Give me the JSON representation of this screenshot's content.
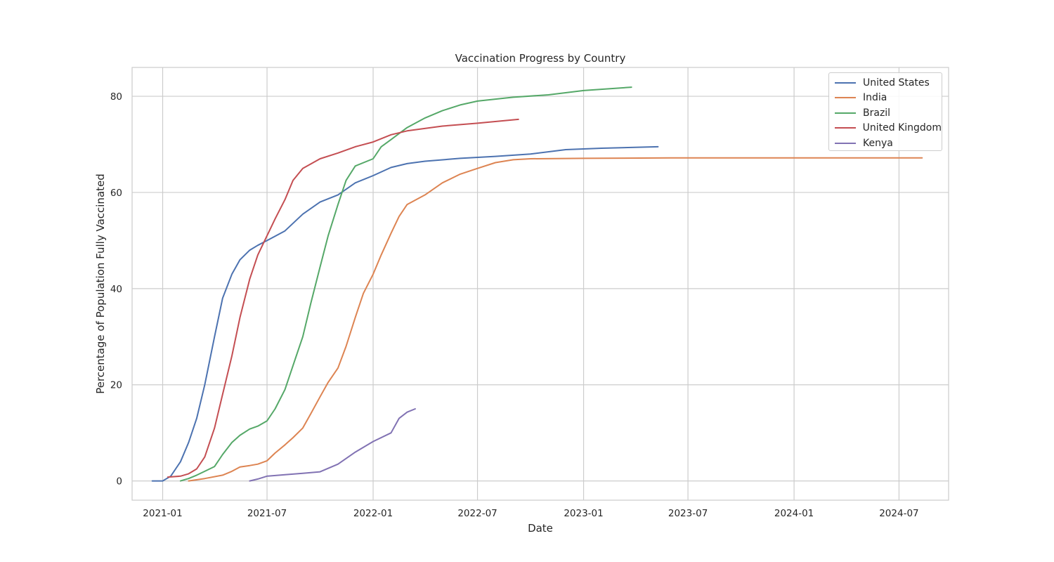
{
  "chart_data": {
    "type": "line",
    "title": "Vaccination Progress by Country",
    "xlabel": "Date",
    "ylabel": "Percentage of Population Fully Vaccinated",
    "xlim": [
      "2020-11-09",
      "2024-09-25"
    ],
    "ylim": [
      -4,
      86
    ],
    "x_ticks": [
      "2021-01",
      "2021-07",
      "2022-01",
      "2022-07",
      "2023-01",
      "2023-07",
      "2024-01",
      "2024-07"
    ],
    "y_ticks": [
      0,
      20,
      40,
      60,
      80
    ],
    "grid": true,
    "legend_position": "upper right",
    "series": [
      {
        "name": "United States",
        "color": "#4c72b0",
        "points": [
          [
            "2020-12-14",
            0
          ],
          [
            "2021-01-01",
            0
          ],
          [
            "2021-01-15",
            1
          ],
          [
            "2021-02-01",
            4
          ],
          [
            "2021-02-15",
            8
          ],
          [
            "2021-03-01",
            13
          ],
          [
            "2021-03-15",
            20
          ],
          [
            "2021-04-01",
            30
          ],
          [
            "2021-04-15",
            38
          ],
          [
            "2021-05-01",
            43
          ],
          [
            "2021-05-15",
            46
          ],
          [
            "2021-06-01",
            48
          ],
          [
            "2021-06-15",
            49
          ],
          [
            "2021-07-01",
            50
          ],
          [
            "2021-08-01",
            52
          ],
          [
            "2021-09-01",
            55.5
          ],
          [
            "2021-10-01",
            58
          ],
          [
            "2021-11-01",
            59.5
          ],
          [
            "2021-12-01",
            62
          ],
          [
            "2022-01-01",
            63.5
          ],
          [
            "2022-02-01",
            65.2
          ],
          [
            "2022-03-01",
            66
          ],
          [
            "2022-04-01",
            66.5
          ],
          [
            "2022-06-01",
            67.1
          ],
          [
            "2022-08-01",
            67.5
          ],
          [
            "2022-10-01",
            68
          ],
          [
            "2022-12-01",
            68.9
          ],
          [
            "2023-02-01",
            69.2
          ],
          [
            "2023-05-10",
            69.5
          ]
        ]
      },
      {
        "name": "India",
        "color": "#dd8452",
        "points": [
          [
            "2021-02-15",
            0
          ],
          [
            "2021-03-15",
            0.5
          ],
          [
            "2021-04-15",
            1.2
          ],
          [
            "2021-05-01",
            2
          ],
          [
            "2021-05-15",
            2.9
          ],
          [
            "2021-06-01",
            3.2
          ],
          [
            "2021-06-15",
            3.5
          ],
          [
            "2021-07-01",
            4.2
          ],
          [
            "2021-07-15",
            5.8
          ],
          [
            "2021-08-01",
            7.5
          ],
          [
            "2021-08-15",
            9
          ],
          [
            "2021-09-01",
            11
          ],
          [
            "2021-09-15",
            14
          ],
          [
            "2021-10-01",
            17.5
          ],
          [
            "2021-10-15",
            20.5
          ],
          [
            "2021-11-01",
            23.5
          ],
          [
            "2021-11-15",
            28
          ],
          [
            "2021-12-01",
            34
          ],
          [
            "2021-12-15",
            39
          ],
          [
            "2022-01-01",
            43
          ],
          [
            "2022-01-15",
            47
          ],
          [
            "2022-02-01",
            51.5
          ],
          [
            "2022-02-15",
            55
          ],
          [
            "2022-03-01",
            57.5
          ],
          [
            "2022-04-01",
            59.5
          ],
          [
            "2022-05-01",
            62
          ],
          [
            "2022-06-01",
            63.8
          ],
          [
            "2022-07-01",
            65
          ],
          [
            "2022-08-01",
            66.2
          ],
          [
            "2022-09-01",
            66.8
          ],
          [
            "2022-10-01",
            67
          ],
          [
            "2023-01-01",
            67.1
          ],
          [
            "2023-06-01",
            67.2
          ],
          [
            "2023-12-01",
            67.2
          ],
          [
            "2024-08-10",
            67.2
          ]
        ]
      },
      {
        "name": "Brazil",
        "color": "#55a868",
        "points": [
          [
            "2021-02-01",
            0
          ],
          [
            "2021-02-15",
            0.5
          ],
          [
            "2021-03-01",
            1.2
          ],
          [
            "2021-03-15",
            2
          ],
          [
            "2021-04-01",
            3
          ],
          [
            "2021-04-15",
            5.5
          ],
          [
            "2021-05-01",
            8
          ],
          [
            "2021-05-15",
            9.5
          ],
          [
            "2021-06-01",
            10.8
          ],
          [
            "2021-06-15",
            11.4
          ],
          [
            "2021-07-01",
            12.5
          ],
          [
            "2021-07-15",
            15
          ],
          [
            "2021-08-01",
            19
          ],
          [
            "2021-08-15",
            24
          ],
          [
            "2021-09-01",
            30
          ],
          [
            "2021-09-15",
            37
          ],
          [
            "2021-10-01",
            44.5
          ],
          [
            "2021-10-15",
            51
          ],
          [
            "2021-11-01",
            57.5
          ],
          [
            "2021-11-15",
            62.5
          ],
          [
            "2021-12-01",
            65.5
          ],
          [
            "2022-01-01",
            67
          ],
          [
            "2022-01-15",
            69.5
          ],
          [
            "2022-02-01",
            71
          ],
          [
            "2022-03-01",
            73.5
          ],
          [
            "2022-04-01",
            75.5
          ],
          [
            "2022-05-01",
            77
          ],
          [
            "2022-06-01",
            78.2
          ],
          [
            "2022-07-01",
            79
          ],
          [
            "2022-09-01",
            79.8
          ],
          [
            "2022-11-01",
            80.3
          ],
          [
            "2023-01-01",
            81.2
          ],
          [
            "2023-03-25",
            81.9
          ]
        ]
      },
      {
        "name": "United Kingdom",
        "color": "#c44e52",
        "points": [
          [
            "2021-01-10",
            0.8
          ],
          [
            "2021-02-01",
            1
          ],
          [
            "2021-02-15",
            1.5
          ],
          [
            "2021-03-01",
            2.5
          ],
          [
            "2021-03-15",
            5
          ],
          [
            "2021-04-01",
            11
          ],
          [
            "2021-04-15",
            18
          ],
          [
            "2021-05-01",
            26
          ],
          [
            "2021-05-15",
            34
          ],
          [
            "2021-06-01",
            42
          ],
          [
            "2021-06-15",
            47
          ],
          [
            "2021-07-01",
            51
          ],
          [
            "2021-07-15",
            54.5
          ],
          [
            "2021-08-01",
            58.5
          ],
          [
            "2021-08-15",
            62.5
          ],
          [
            "2021-09-01",
            65
          ],
          [
            "2021-10-01",
            67
          ],
          [
            "2021-11-01",
            68.2
          ],
          [
            "2021-12-01",
            69.5
          ],
          [
            "2022-01-01",
            70.5
          ],
          [
            "2022-02-01",
            72
          ],
          [
            "2022-03-01",
            72.8
          ],
          [
            "2022-05-01",
            73.8
          ],
          [
            "2022-07-01",
            74.4
          ],
          [
            "2022-09-10",
            75.2
          ]
        ]
      },
      {
        "name": "Kenya",
        "color": "#8172b3",
        "points": [
          [
            "2021-06-01",
            0
          ],
          [
            "2021-06-15",
            0.4
          ],
          [
            "2021-07-01",
            1
          ],
          [
            "2021-08-01",
            1.3
          ],
          [
            "2021-09-01",
            1.6
          ],
          [
            "2021-10-01",
            1.9
          ],
          [
            "2021-11-01",
            3.5
          ],
          [
            "2021-12-01",
            6
          ],
          [
            "2022-01-01",
            8.2
          ],
          [
            "2022-02-01",
            10
          ],
          [
            "2022-02-15",
            13
          ],
          [
            "2022-03-01",
            14.3
          ],
          [
            "2022-03-15",
            15
          ]
        ]
      }
    ]
  }
}
